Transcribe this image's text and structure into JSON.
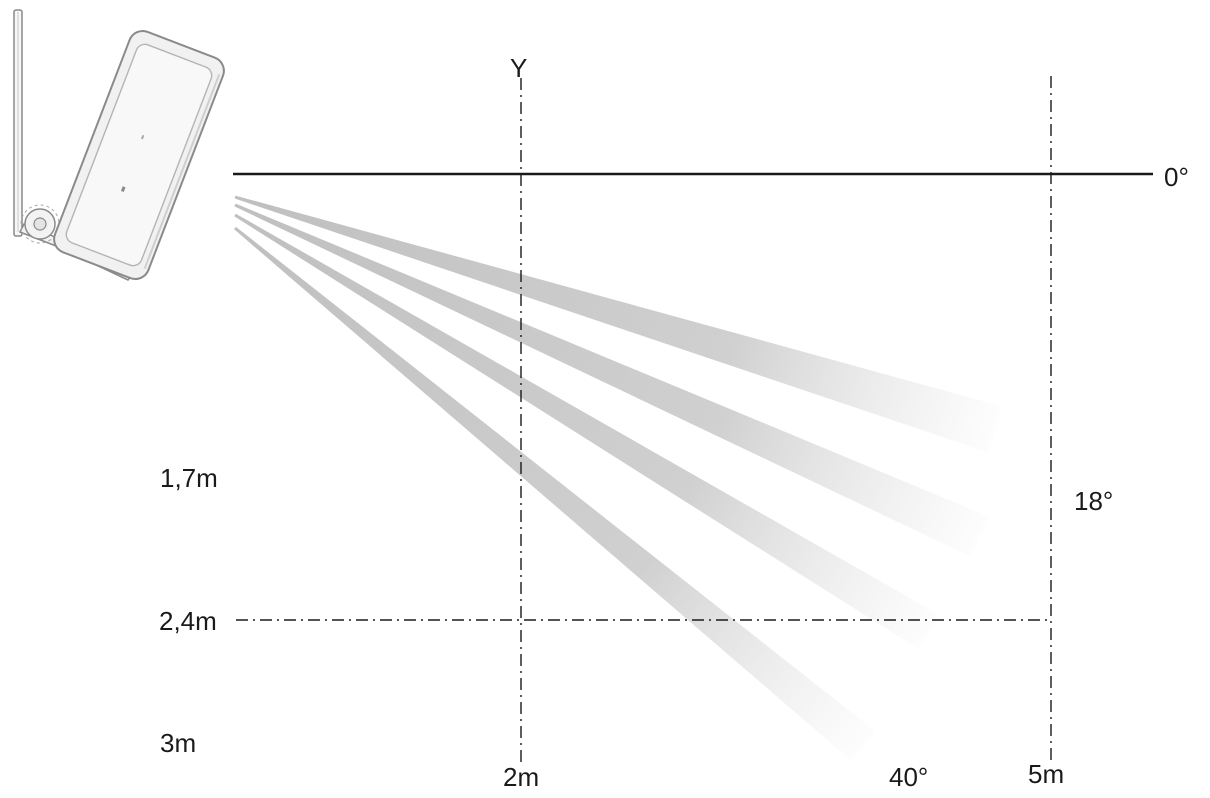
{
  "labels": {
    "y_axis": "Y",
    "horizon_angle": "0°",
    "upper_beam_angle": "18°",
    "lower_beam_angle": "40°",
    "height_1": "1,7m",
    "height_2": "2,4m",
    "height_3": "3m",
    "distance_1": "2m",
    "distance_2": "5m"
  },
  "colors": {
    "beam": "#b4b4b4",
    "line": "#1a1a1a",
    "device_body": "#f1f1f1",
    "device_outline": "#8a8a8a"
  },
  "device": {
    "icon": "pir-motion-sensor-icon"
  }
}
